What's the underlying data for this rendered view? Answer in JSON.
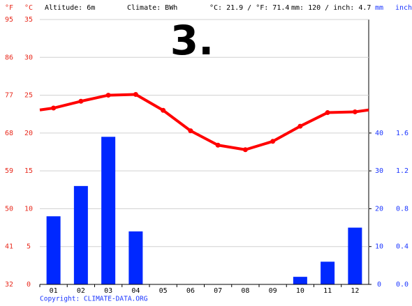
{
  "chart_data": {
    "type": "climate",
    "header": {
      "altitude": "Altitude: 6m",
      "climate": "Climate: BWh",
      "temp": "°C: 21.9 / °F: 71.4",
      "precip": "mm: 120 / inch: 4.7"
    },
    "logo": "3.",
    "footer": "Copyright: CLIMATE-DATA.ORG",
    "axis_labels": {
      "f": "°F",
      "c": "°C",
      "mm": "mm",
      "inch": "inch"
    },
    "categories": [
      "01",
      "02",
      "03",
      "04",
      "05",
      "06",
      "07",
      "08",
      "09",
      "10",
      "11",
      "12"
    ],
    "series": [
      {
        "name": "Temperature",
        "color": "#ff0000",
        "values": [
          23.3,
          24.2,
          25.0,
          25.1,
          23.0,
          20.3,
          18.4,
          17.8,
          18.9,
          20.9,
          22.7,
          22.8
        ]
      },
      {
        "name": "Precipitation",
        "color": "#0028ff",
        "axis": "y2",
        "values": [
          18,
          26,
          39,
          14,
          0,
          0,
          0,
          0,
          0,
          2,
          6,
          15
        ]
      }
    ],
    "ylim": [
      0,
      35
    ],
    "yticks": [
      0,
      5,
      10,
      15,
      20,
      25,
      30,
      35
    ],
    "yflim": [
      32,
      95
    ],
    "yfticks": [
      32,
      41,
      50,
      59,
      68,
      77,
      86,
      95
    ],
    "y2lim": [
      0,
      70
    ],
    "y2ticks": [
      0,
      10,
      20,
      30,
      40
    ],
    "y3lim": [
      0,
      2.8
    ],
    "y3ticks": [
      {
        "value": 0,
        "label": "0.0"
      },
      {
        "value": 0.4,
        "label": "0.4"
      },
      {
        "value": 0.8,
        "label": "0.8"
      },
      {
        "value": 1.2,
        "label": "1.2"
      },
      {
        "value": 1.6,
        "label": "1.6"
      }
    ],
    "grid": true
  }
}
